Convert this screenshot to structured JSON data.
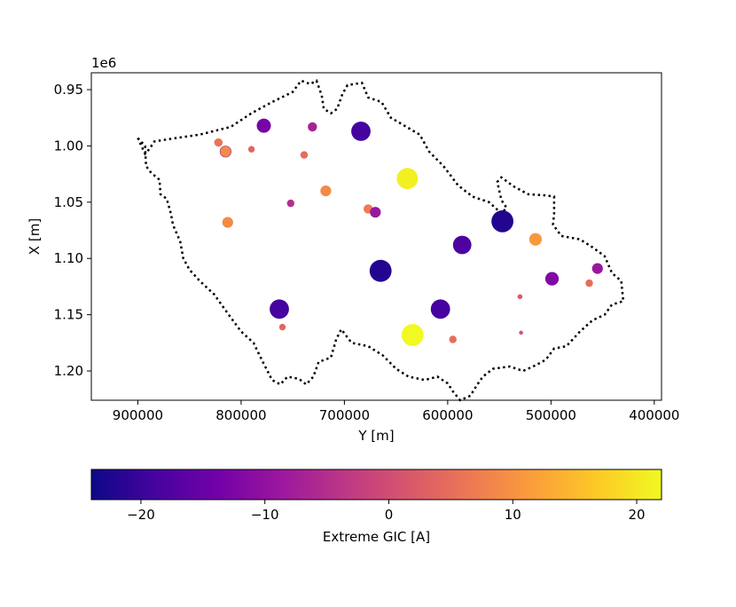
{
  "chart_data": {
    "type": "scatter",
    "title": "",
    "xlabel": "Y [m]",
    "ylabel": "X [m]",
    "y_offset_label": "1e6",
    "xlim": [
      945000,
      393000
    ],
    "ylim": [
      1.226,
      0.935
    ],
    "x_ticks": [
      {
        "value": 900000,
        "label": "900000"
      },
      {
        "value": 800000,
        "label": "800000"
      },
      {
        "value": 700000,
        "label": "700000"
      },
      {
        "value": 600000,
        "label": "600000"
      },
      {
        "value": 500000,
        "label": "500000"
      },
      {
        "value": 400000,
        "label": "400000"
      }
    ],
    "y_ticks": [
      {
        "value": 0.95,
        "label": "0.95"
      },
      {
        "value": 1.0,
        "label": "1.00"
      },
      {
        "value": 1.05,
        "label": "1.05"
      },
      {
        "value": 1.1,
        "label": "1.10"
      },
      {
        "value": 1.15,
        "label": "1.15"
      },
      {
        "value": 1.2,
        "label": "1.20"
      }
    ],
    "y_scale_factor": 1000000,
    "colormap": "plasma",
    "color_range": [
      -24,
      22
    ],
    "colorbar": {
      "label": "Extreme GIC [A]",
      "ticks": [
        {
          "value": -20,
          "label": "−20"
        },
        {
          "value": -10,
          "label": "−10"
        },
        {
          "value": 0,
          "label": "0"
        },
        {
          "value": 10,
          "label": "10"
        },
        {
          "value": 20,
          "label": "20"
        }
      ]
    },
    "marker_size_encoding": "abs(value)",
    "points": [
      {
        "y": 778000,
        "x": 0.982,
        "gic": -13
      },
      {
        "y": 731000,
        "x": 0.983,
        "gic": -7
      },
      {
        "y": 684000,
        "x": 0.987,
        "gic": -19
      },
      {
        "y": 822000,
        "x": 0.997,
        "gic": 6
      },
      {
        "y": 815000,
        "x": 1.005,
        "gic": -10
      },
      {
        "y": 815000,
        "x": 1.005,
        "gic": 9
      },
      {
        "y": 790000,
        "x": 1.003,
        "gic": 4
      },
      {
        "y": 739000,
        "x": 1.008,
        "gic": 5
      },
      {
        "y": 639000,
        "x": 1.029,
        "gic": 21
      },
      {
        "y": 718000,
        "x": 1.04,
        "gic": 9
      },
      {
        "y": 752000,
        "x": 1.051,
        "gic": -5
      },
      {
        "y": 677000,
        "x": 1.056,
        "gic": 7
      },
      {
        "y": 670000,
        "x": 1.059,
        "gic": -9
      },
      {
        "y": 813000,
        "x": 1.068,
        "gic": 9
      },
      {
        "y": 547000,
        "x": 1.067,
        "gic": -22
      },
      {
        "y": 515000,
        "x": 1.083,
        "gic": 11
      },
      {
        "y": 586000,
        "x": 1.088,
        "gic": -18
      },
      {
        "y": 665000,
        "x": 1.111,
        "gic": -22
      },
      {
        "y": 455000,
        "x": 1.109,
        "gic": -9
      },
      {
        "y": 499000,
        "x": 1.118,
        "gic": -12
      },
      {
        "y": 463000,
        "x": 1.122,
        "gic": 5
      },
      {
        "y": 530000,
        "x": 1.134,
        "gic": 2
      },
      {
        "y": 763000,
        "x": 1.145,
        "gic": -19
      },
      {
        "y": 607000,
        "x": 1.145,
        "gic": -19
      },
      {
        "y": 760000,
        "x": 1.161,
        "gic": 4
      },
      {
        "y": 529000,
        "x": 1.166,
        "gic": 1
      },
      {
        "y": 634000,
        "x": 1.168,
        "gic": 22
      },
      {
        "y": 595000,
        "x": 1.172,
        "gic": 5
      }
    ],
    "boundary": [
      [
        900000,
        0.993
      ],
      [
        893000,
        1.0
      ],
      [
        892000,
        1.018
      ],
      [
        887000,
        1.024
      ],
      [
        879000,
        1.03
      ],
      [
        878000,
        1.043
      ],
      [
        872000,
        1.047
      ],
      [
        868000,
        1.06
      ],
      [
        866000,
        1.07
      ],
      [
        859000,
        1.085
      ],
      [
        856000,
        1.1
      ],
      [
        850000,
        1.11
      ],
      [
        840000,
        1.12
      ],
      [
        826000,
        1.132
      ],
      [
        812000,
        1.15
      ],
      [
        800000,
        1.165
      ],
      [
        788000,
        1.175
      ],
      [
        780000,
        1.19
      ],
      [
        770000,
        1.208
      ],
      [
        762000,
        1.212
      ],
      [
        755000,
        1.205
      ],
      [
        744000,
        1.207
      ],
      [
        737000,
        1.212
      ],
      [
        730000,
        1.205
      ],
      [
        725000,
        1.192
      ],
      [
        713000,
        1.188
      ],
      [
        708000,
        1.172
      ],
      [
        703000,
        1.163
      ],
      [
        693000,
        1.175
      ],
      [
        677000,
        1.178
      ],
      [
        663000,
        1.186
      ],
      [
        650000,
        1.198
      ],
      [
        638000,
        1.205
      ],
      [
        622000,
        1.208
      ],
      [
        610000,
        1.205
      ],
      [
        600000,
        1.211
      ],
      [
        595000,
        1.218
      ],
      [
        588000,
        1.226
      ],
      [
        578000,
        1.222
      ],
      [
        572000,
        1.213
      ],
      [
        566000,
        1.205
      ],
      [
        556000,
        1.198
      ],
      [
        540000,
        1.196
      ],
      [
        527000,
        1.2
      ],
      [
        515000,
        1.195
      ],
      [
        505000,
        1.19
      ],
      [
        497000,
        1.18
      ],
      [
        485000,
        1.178
      ],
      [
        472000,
        1.165
      ],
      [
        460000,
        1.155
      ],
      [
        448000,
        1.15
      ],
      [
        441000,
        1.141
      ],
      [
        430000,
        1.138
      ],
      [
        432000,
        1.12
      ],
      [
        441000,
        1.113
      ],
      [
        448000,
        1.098
      ],
      [
        460000,
        1.09
      ],
      [
        472000,
        1.083
      ],
      [
        490000,
        1.08
      ],
      [
        498000,
        1.07
      ],
      [
        497000,
        1.06
      ],
      [
        497000,
        1.045
      ],
      [
        505000,
        1.044
      ],
      [
        522000,
        1.043
      ],
      [
        536000,
        1.036
      ],
      [
        548000,
        1.028
      ],
      [
        552000,
        1.032
      ],
      [
        548000,
        1.048
      ],
      [
        543000,
        1.055
      ],
      [
        548000,
        1.06
      ],
      [
        560000,
        1.05
      ],
      [
        576000,
        1.045
      ],
      [
        590000,
        1.035
      ],
      [
        604000,
        1.018
      ],
      [
        618000,
        1.005
      ],
      [
        627000,
        0.99
      ],
      [
        642000,
        0.982
      ],
      [
        655000,
        0.975
      ],
      [
        664000,
        0.961
      ],
      [
        677000,
        0.957
      ],
      [
        683000,
        0.944
      ],
      [
        697000,
        0.946
      ],
      [
        702000,
        0.954
      ],
      [
        707000,
        0.967
      ],
      [
        713000,
        0.971
      ],
      [
        720000,
        0.967
      ],
      [
        722000,
        0.955
      ],
      [
        727000,
        0.942
      ],
      [
        733000,
        0.945
      ],
      [
        742000,
        0.942
      ],
      [
        750000,
        0.952
      ],
      [
        770000,
        0.961
      ],
      [
        790000,
        0.971
      ],
      [
        810000,
        0.983
      ],
      [
        840000,
        0.99
      ],
      [
        870000,
        0.994
      ],
      [
        884000,
        0.996
      ],
      [
        889000,
        1.003
      ],
      [
        893000,
        1.007
      ],
      [
        900000,
        0.993
      ]
    ]
  }
}
